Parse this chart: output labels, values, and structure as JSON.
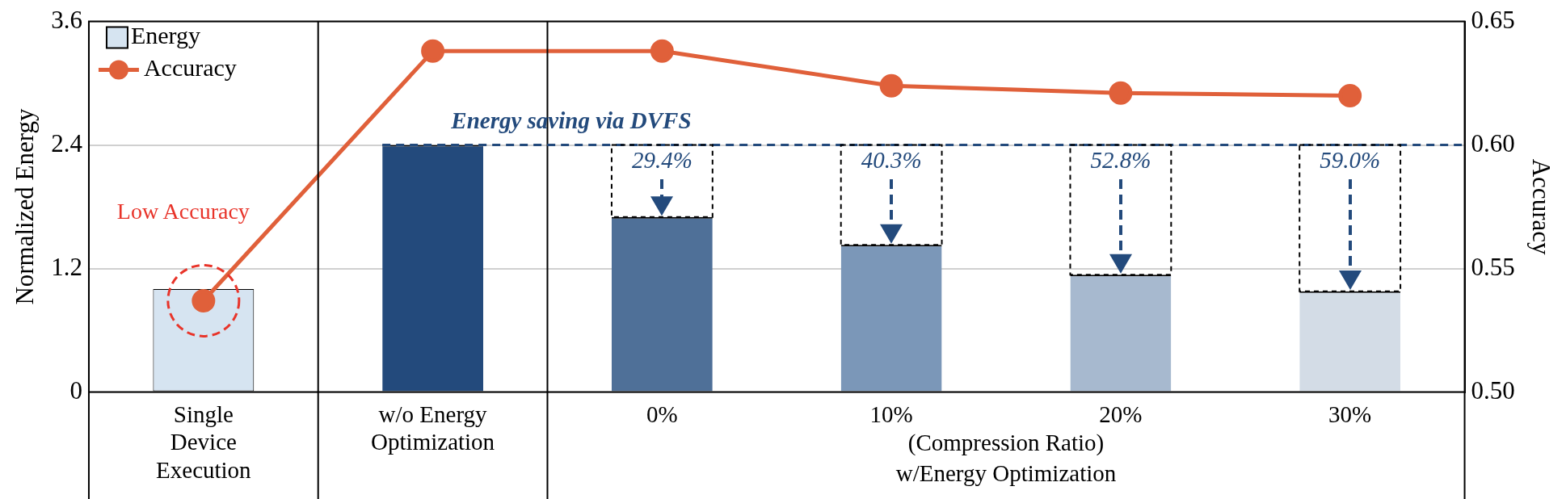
{
  "chart_data": {
    "type": "bar",
    "ylabel": "Normalized Energy",
    "y2label": "Accuracy",
    "categories": [
      "Single\nDevice\nExecution",
      "w/o Energy\nOptimization",
      "0%",
      "10%",
      "20%",
      "30%"
    ],
    "series": [
      {
        "name": "Energy",
        "values": [
          1.0,
          2.4,
          1.7,
          1.43,
          1.14,
          0.98
        ],
        "colors": [
          "#d6e4f1",
          "#234a7c",
          "#4f7098",
          "#7b97b8",
          "#a7b9cf",
          "#d3dce6"
        ]
      },
      {
        "name": "Accuracy",
        "type": "line",
        "axis": "y2",
        "color": "#e0603a",
        "values": [
          0.537,
          0.638,
          0.638,
          0.624,
          0.621,
          0.62
        ]
      }
    ],
    "ylim": [
      0,
      3.6
    ],
    "yticks": [
      0,
      1.2,
      2.4,
      3.6
    ],
    "y2lim": [
      0.5,
      0.65
    ],
    "y2ticks": [
      {
        "value": 0.5,
        "label": "0.50"
      },
      {
        "value": 0.55,
        "label": "0.55"
      },
      {
        "value": 0.6,
        "label": "0.60"
      },
      {
        "value": 0.65,
        "label": "0.65"
      }
    ],
    "grid": "y",
    "legend": "top left",
    "marker": "circle",
    "ref_lines": [
      {
        "axis": "y",
        "value": 2.4,
        "label": "Energy saving via DVFS",
        "color": "#234a7c",
        "line_style": "dashed"
      }
    ],
    "annotations": [
      "Low Accuracy",
      {
        "text": "29.4%",
        "x": "0%",
        "y": 2.4
      },
      {
        "text": "40.3%",
        "x": "10%",
        "y": 2.4
      },
      {
        "text": "52.8%",
        "x": "20%",
        "y": 2.4
      },
      {
        "text": "59.0%",
        "x": "30%",
        "y": 2.4
      },
      "(Compression Ratio)",
      "w/Energy Optimization"
    ]
  }
}
